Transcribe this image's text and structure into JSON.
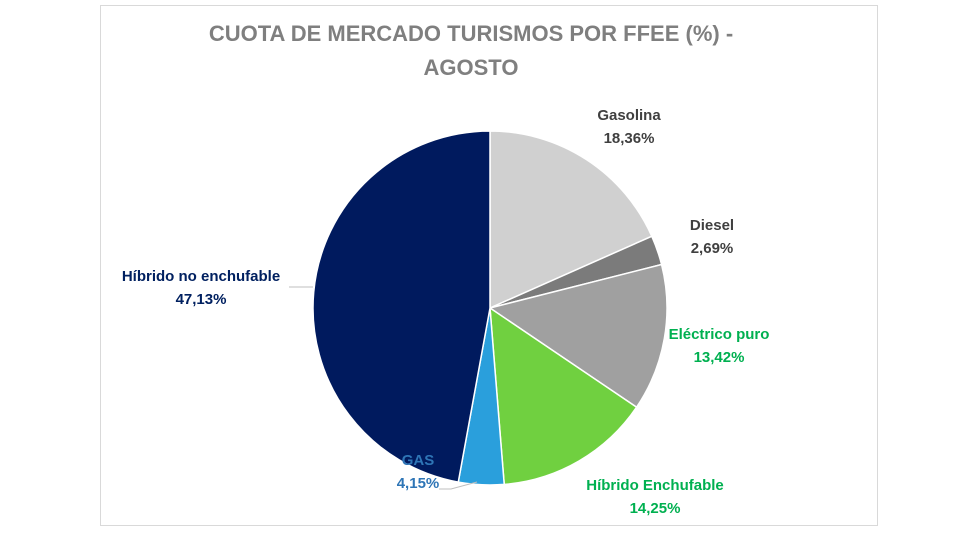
{
  "chart_data": {
    "type": "pie",
    "title_lines": [
      "CUOTA DE MERCADO TURISMOS POR FFEE (%)  -",
      "AGOSTO"
    ],
    "slices": [
      {
        "name": "Gasolina",
        "value": 18.36,
        "label": "18,36%",
        "color": "#d0d0d0",
        "label_color": "#404040"
      },
      {
        "name": "Diesel",
        "value": 2.69,
        "label": "2,69%",
        "color": "#7b7b7b",
        "label_color": "#404040"
      },
      {
        "name": "Eléctrico puro",
        "value": 13.42,
        "label": "13,42%",
        "color": "#a0a0a0",
        "label_color": "#00b050"
      },
      {
        "name": "Híbrido Enchufable",
        "value": 14.25,
        "label": "14,25%",
        "color": "#70d040",
        "label_color": "#00b050"
      },
      {
        "name": "GAS",
        "value": 4.15,
        "label": "4,15%",
        "color": "#2a9fdc",
        "label_color": "#2e75b6"
      },
      {
        "name": "Híbrido no enchufable",
        "value": 47.13,
        "label": "47,13%",
        "color": "#001a5e",
        "label_color": "#002060"
      }
    ]
  }
}
